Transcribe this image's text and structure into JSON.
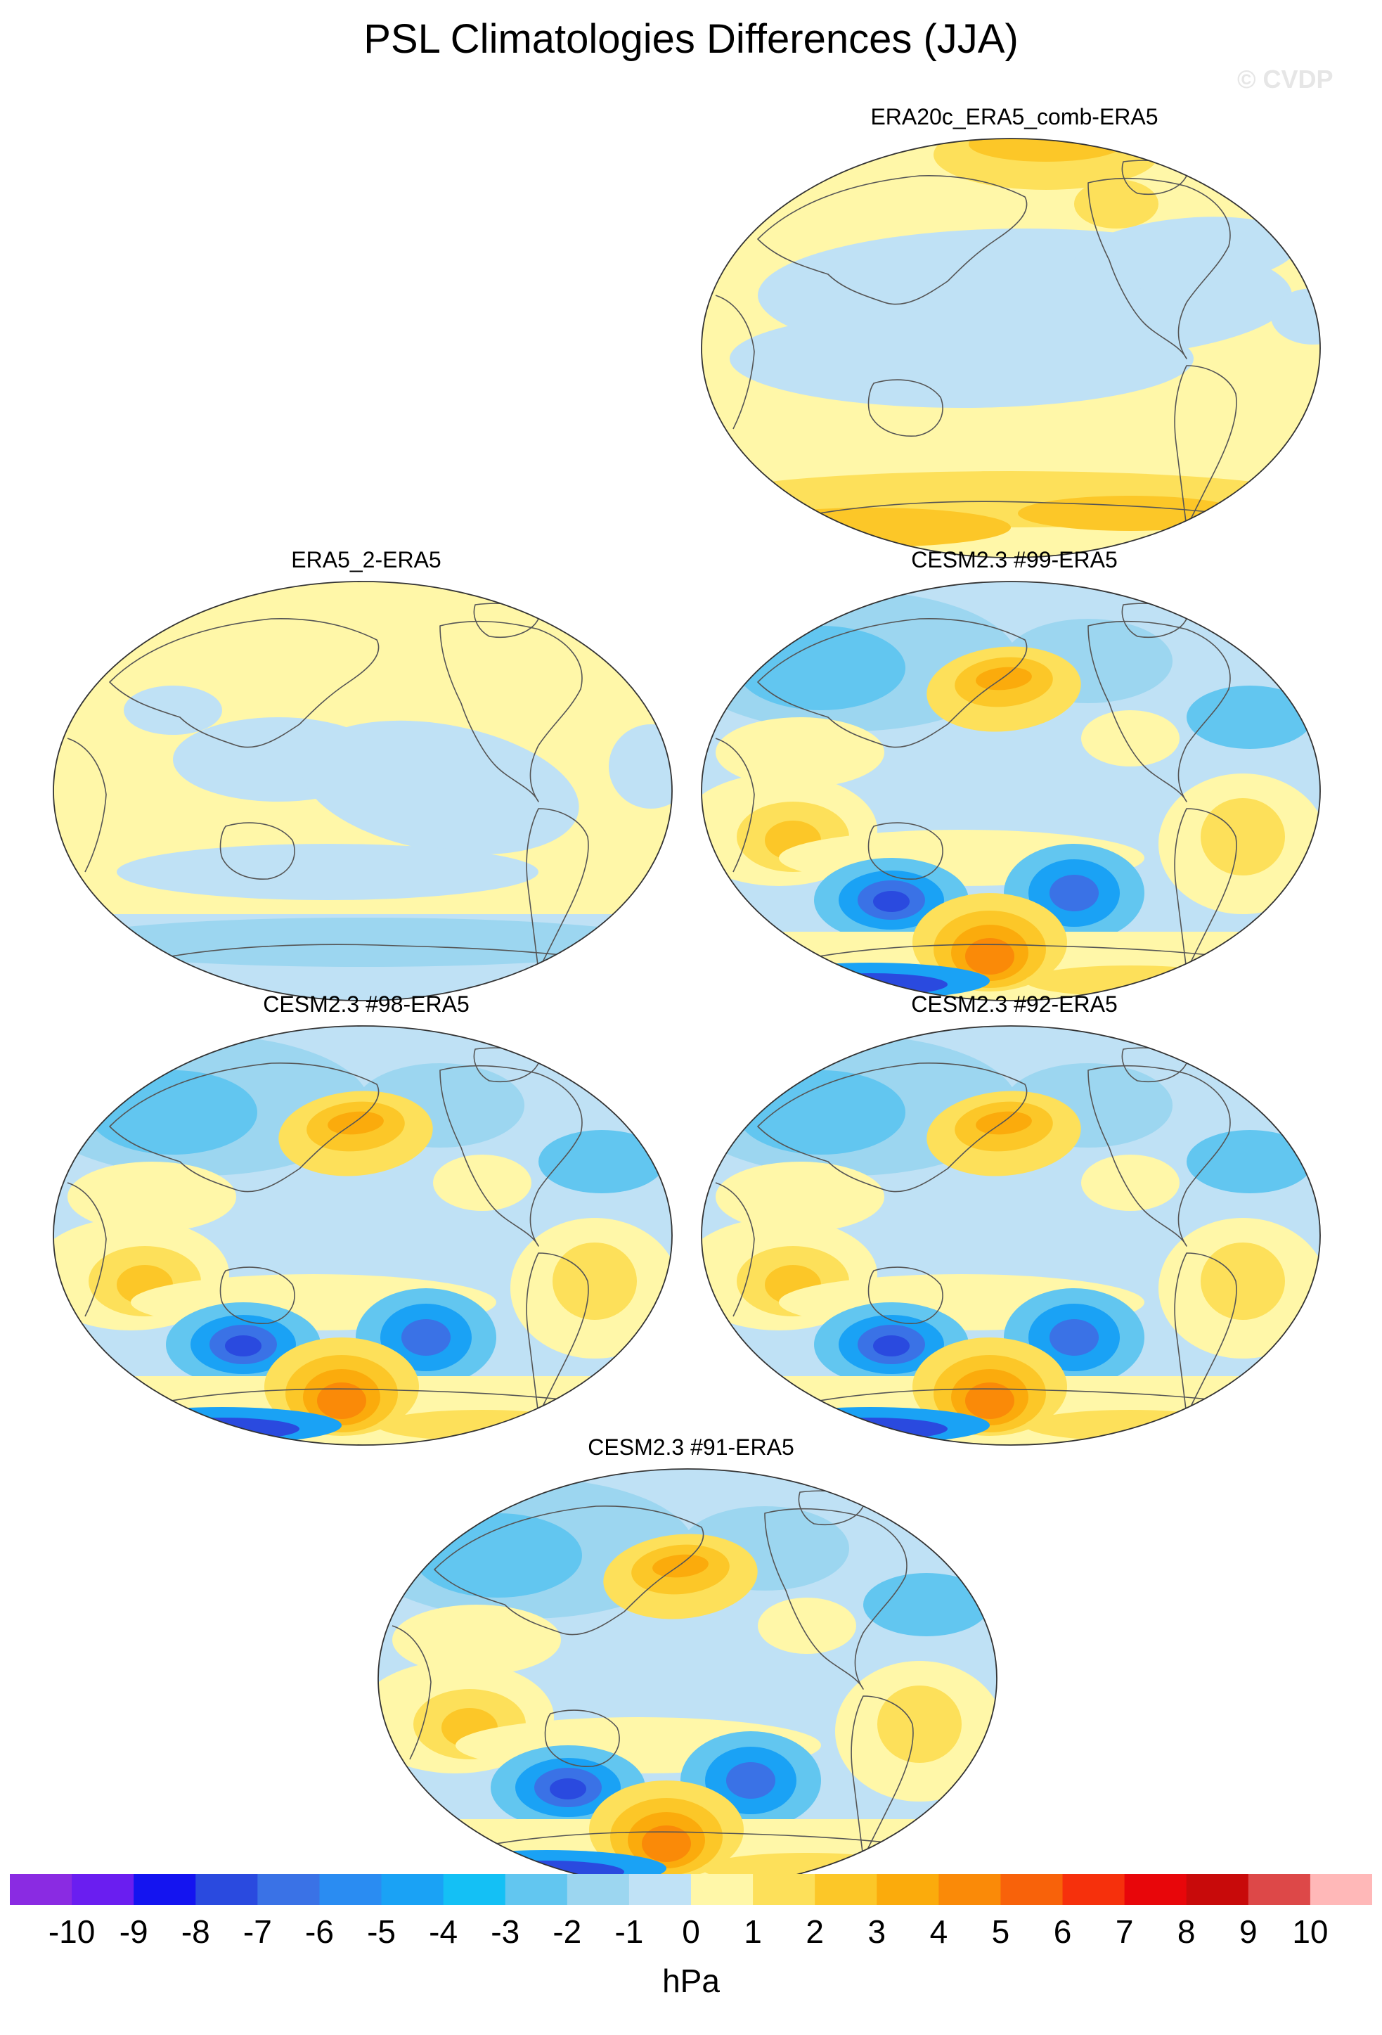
{
  "title": "PSL Climatologies Differences (JJA)",
  "watermark": "© CVDP",
  "units": "hPa",
  "panels": [
    {
      "id": "p1",
      "label": "ERA20c_ERA5_comb-ERA5",
      "pattern": "weak-high"
    },
    {
      "id": "p2",
      "label": "ERA5_2-ERA5",
      "pattern": "neutral"
    },
    {
      "id": "p3",
      "label": "CESM2.3 #99-ERA5",
      "pattern": "strong"
    },
    {
      "id": "p4",
      "label": "CESM2.3 #98-ERA5",
      "pattern": "strong"
    },
    {
      "id": "p5",
      "label": "CESM2.3 #92-ERA5",
      "pattern": "strong"
    },
    {
      "id": "p6",
      "label": "CESM2.3 #91-ERA5",
      "pattern": "strong"
    }
  ],
  "colorbar": {
    "labels": [
      "-10",
      "-9",
      "-8",
      "-7",
      "-6",
      "-5",
      "-4",
      "-3",
      "-2",
      "-1",
      "0",
      "1",
      "2",
      "3",
      "4",
      "5",
      "6",
      "7",
      "8",
      "9",
      "10"
    ],
    "colors": [
      "#8a2be2",
      "#6a1ef0",
      "#1414f0",
      "#2a4adf",
      "#3a72e6",
      "#2a8cf2",
      "#1aa2f5",
      "#14c0f5",
      "#62c6f0",
      "#9cd6f0",
      "#c0e2f6",
      "#fff7a8",
      "#fde05a",
      "#fcc728",
      "#fbab0c",
      "#fa8a08",
      "#f8620a",
      "#f6300c",
      "#e8060a",
      "#c80a0a",
      "#dd4848",
      "#ffb8b8"
    ]
  }
}
